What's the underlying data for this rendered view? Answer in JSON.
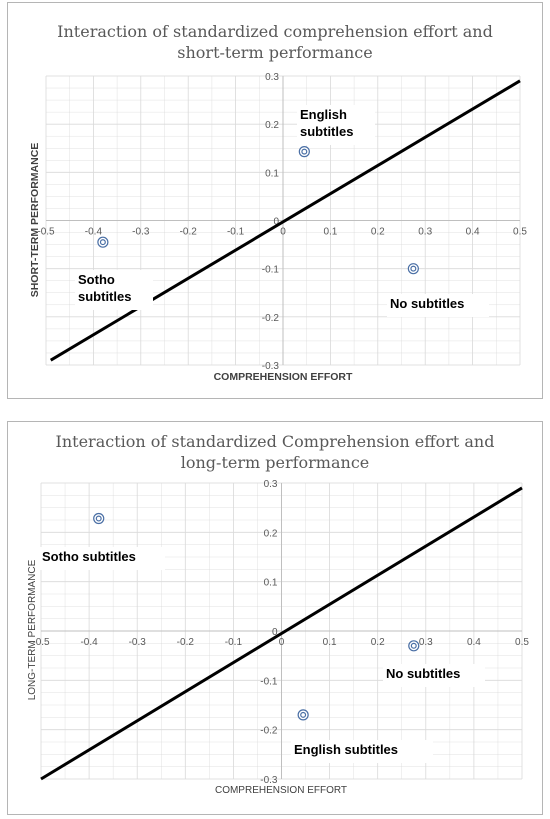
{
  "chart_data": [
    {
      "type": "scatter",
      "title": "Interaction of standardized comprehension effort and short-term performance",
      "title_lines": [
        "Interaction of standardized comprehension  effort and",
        "short-term performance"
      ],
      "xlabel": "COMPREHENSION EFFORT",
      "ylabel": "SHORT-TERM PERFORMANCE",
      "xlim": [
        -0.5,
        0.5
      ],
      "ylim": [
        -0.3,
        0.3
      ],
      "x_ticks": [
        "-0.5",
        "-0.4",
        "-0.3",
        "-0.2",
        "-0.1",
        "0",
        "0.1",
        "0.2",
        "0.3",
        "0.4",
        "0.5"
      ],
      "y_ticks": [
        "0.3",
        "0.2",
        "0.1",
        "0",
        "-0.1",
        "-0.2",
        "-0.3"
      ],
      "grid": true,
      "points": [
        {
          "x": -0.38,
          "y": -0.045
        },
        {
          "x": 0.045,
          "y": 0.143
        },
        {
          "x": 0.275,
          "y": -0.1
        }
      ],
      "annotations": [
        {
          "lines": [
            "English",
            "subtitles"
          ]
        },
        {
          "lines": [
            "Sotho",
            "subtitles"
          ]
        },
        {
          "lines": [
            "No subtitles"
          ]
        }
      ],
      "trendline": [
        {
          "x": -0.49,
          "y": -0.29
        },
        {
          "x": 0.5,
          "y": 0.29
        }
      ]
    },
    {
      "type": "scatter",
      "title": "Interaction of standardized Comprehension effort and long-term performance",
      "title_lines": [
        "Interaction of standardized Comprehension  effort and",
        "long-term performance"
      ],
      "xlabel": "COMPREHENSION EFFORT",
      "ylabel": "LONG-TERM PERFORMANCE",
      "xlim": [
        -0.5,
        0.5
      ],
      "ylim": [
        -0.3,
        0.3
      ],
      "x_ticks": [
        "-0.5",
        "-0.4",
        "-0.3",
        "-0.2",
        "-0.1",
        "0",
        "0.1",
        "0.2",
        "0.3",
        "0.4",
        "0.5"
      ],
      "y_ticks": [
        "0.3",
        "0.2",
        "0.1",
        "0",
        "-0.1",
        "-0.2",
        "-0.3"
      ],
      "grid": true,
      "points": [
        {
          "x": -0.38,
          "y": 0.228
        },
        {
          "x": 0.045,
          "y": -0.17
        },
        {
          "x": 0.275,
          "y": -0.03
        }
      ],
      "annotations": [
        {
          "lines": [
            "Sotho subtitles"
          ]
        },
        {
          "lines": [
            "English subtitles"
          ]
        },
        {
          "lines": [
            "No subtitles"
          ]
        }
      ],
      "trendline": [
        {
          "x": -0.5,
          "y": -0.3
        },
        {
          "x": 0.5,
          "y": 0.29
        }
      ]
    }
  ],
  "colors": {
    "grid": "#d9d9d9",
    "axis": "#bfbfbf",
    "marker": "#4a6fa5",
    "trendline": "#000000"
  }
}
